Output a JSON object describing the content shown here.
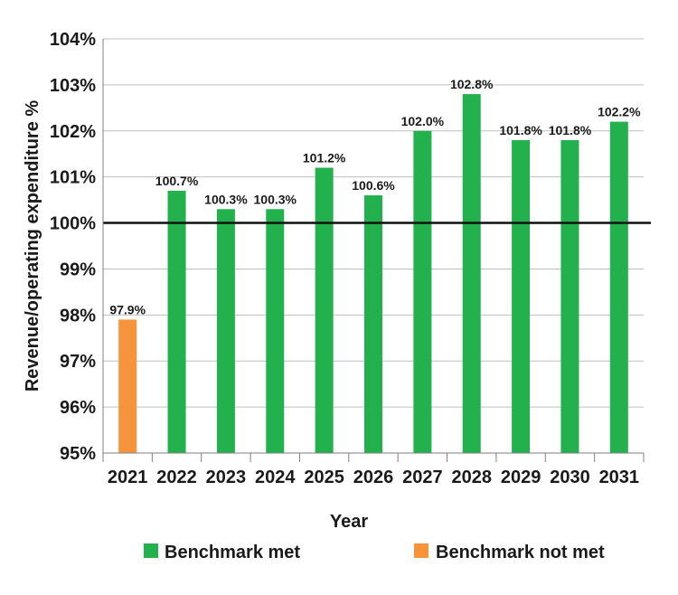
{
  "chart_data": {
    "type": "bar",
    "xlabel": "Year",
    "ylabel": "Revenue/operating expenditure %",
    "ylim": [
      95,
      104
    ],
    "yticks": [
      "95%",
      "96%",
      "97%",
      "98%",
      "99%",
      "100%",
      "101%",
      "102%",
      "103%",
      "104%"
    ],
    "categories": [
      "2021",
      "2022",
      "2023",
      "2024",
      "2025",
      "2026",
      "2027",
      "2028",
      "2029",
      "2030",
      "2031"
    ],
    "values": [
      97.9,
      100.7,
      100.3,
      100.3,
      101.2,
      100.6,
      102.0,
      102.8,
      101.8,
      101.8,
      102.2
    ],
    "data_labels": [
      "97.9%",
      "100.7%",
      "100.3%",
      "100.3%",
      "101.2%",
      "100.6%",
      "102.0%",
      "102.8%",
      "101.8%",
      "101.8%",
      "102.2%"
    ],
    "status": [
      "not_met",
      "met",
      "met",
      "met",
      "met",
      "met",
      "met",
      "met",
      "met",
      "met",
      "met"
    ],
    "benchmark_line": 100,
    "grid": true,
    "legend": {
      "placement": "bottom",
      "items": [
        {
          "key": "met",
          "label": "Benchmark met",
          "color": "#22b14c"
        },
        {
          "key": "not_met",
          "label": "Benchmark not met",
          "color": "#f7943b"
        }
      ]
    },
    "colors": {
      "met": "#22b14c",
      "not_met": "#f7943b",
      "grid": "#bfbfbf",
      "benchmark": "#111111",
      "axis": "#7f7f7f"
    }
  }
}
